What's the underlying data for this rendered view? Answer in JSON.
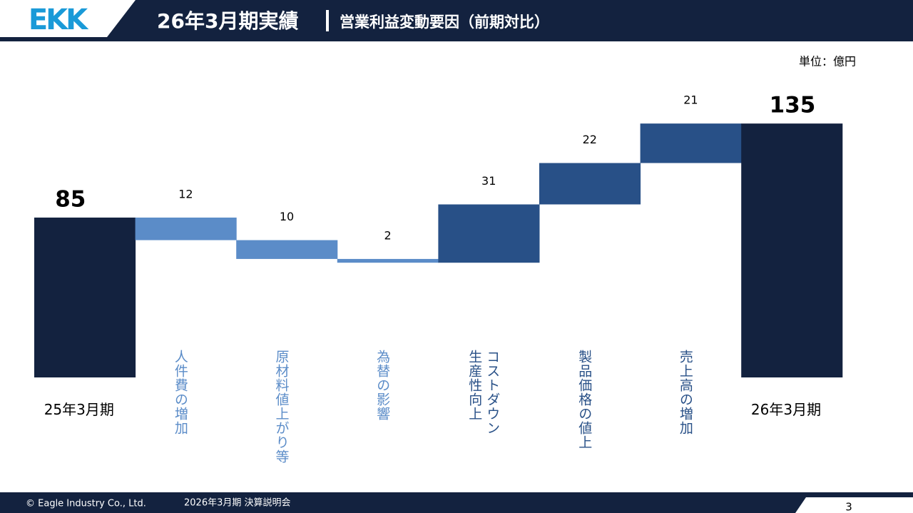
{
  "header": {
    "logo": "EKK",
    "title": "26年3月期実績",
    "subtitle": "営業利益変動要因（前期対比）"
  },
  "chart_data": {
    "type": "waterfall",
    "unit": "単位：億円",
    "categories": [
      "25年3月期",
      "人件費の増加",
      "原材料値上がり等",
      "為替の影響",
      "コストダウン\n生産性向上",
      "製品価格の値上",
      "売上高の増加",
      "26年3月期"
    ],
    "values": [
      85,
      12,
      10,
      2,
      31,
      22,
      21,
      135
    ],
    "steps": [
      "total",
      "decrease",
      "decrease",
      "decrease",
      "increase",
      "increase",
      "increase",
      "total"
    ],
    "colors": {
      "total": "#13223f",
      "decrease": "#5b8cc8",
      "increase": "#285087"
    }
  },
  "footer": {
    "copyright": "© Eagle Industry Co., Ltd.",
    "event": "2026年3月期 決算説明会",
    "page": "3"
  }
}
